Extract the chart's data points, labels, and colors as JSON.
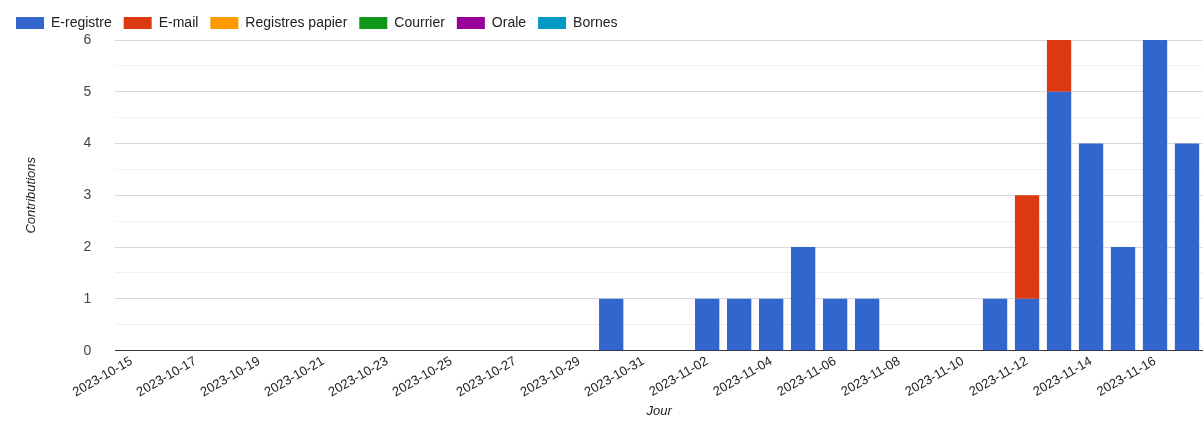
{
  "chart_data": {
    "type": "bar",
    "stacked": true,
    "xlabel": "Jour",
    "ylabel": "Contributions",
    "legend": "top left",
    "grid": "y",
    "categories": [
      "2023-10-15",
      null,
      "2023-10-17",
      null,
      "2023-10-19",
      null,
      "2023-10-21",
      null,
      "2023-10-23",
      null,
      "2023-10-25",
      null,
      "2023-10-27",
      null,
      "2023-10-29",
      null,
      "2023-10-31",
      null,
      "2023-11-02",
      null,
      "2023-11-04",
      null,
      "2023-11-06",
      null,
      "2023-11-08",
      null,
      "2023-11-10",
      null,
      "2023-11-12",
      null,
      "2023-11-14",
      null,
      "2023-11-16",
      null
    ],
    "ylim": [
      0,
      6
    ],
    "yticks": [
      0,
      {
        "value": 0.5,
        "label": null
      },
      1,
      {
        "value": 1.5,
        "label": null
      },
      2,
      {
        "value": 2.5,
        "label": null
      },
      3,
      {
        "value": 3.5,
        "label": null
      },
      4,
      {
        "value": 4.5,
        "label": null
      },
      5,
      {
        "value": 5.5,
        "label": null
      },
      6
    ],
    "series": [
      {
        "name": "E-registre",
        "color": "#3366cc",
        "values": [
          0,
          0,
          0,
          0,
          0,
          0,
          0,
          0,
          0,
          0,
          0,
          0,
          0,
          0,
          0,
          1,
          0,
          0,
          1,
          1,
          1,
          2,
          1,
          1,
          0,
          0,
          0,
          1,
          1,
          5,
          4,
          2,
          6,
          4
        ]
      },
      {
        "name": "E-mail",
        "color": "#dc3912",
        "values": [
          0,
          0,
          0,
          0,
          0,
          0,
          0,
          0,
          0,
          0,
          0,
          0,
          0,
          0,
          0,
          0,
          0,
          0,
          0,
          0,
          0,
          0,
          0,
          0,
          0,
          0,
          0,
          0,
          2,
          1,
          0,
          0,
          0,
          0
        ]
      },
      {
        "name": "Registres papier",
        "color": "#ff9900",
        "values": [
          0,
          0,
          0,
          0,
          0,
          0,
          0,
          0,
          0,
          0,
          0,
          0,
          0,
          0,
          0,
          0,
          0,
          0,
          0,
          0,
          0,
          0,
          0,
          0,
          0,
          0,
          0,
          0,
          0,
          0,
          0,
          0,
          0,
          0
        ]
      },
      {
        "name": "Courrier",
        "color": "#109618",
        "values": [
          0,
          0,
          0,
          0,
          0,
          0,
          0,
          0,
          0,
          0,
          0,
          0,
          0,
          0,
          0,
          0,
          0,
          0,
          0,
          0,
          0,
          0,
          0,
          0,
          0,
          0,
          0,
          0,
          0,
          0,
          0,
          0,
          0,
          0
        ]
      },
      {
        "name": "Orale",
        "color": "#990099",
        "values": [
          0,
          0,
          0,
          0,
          0,
          0,
          0,
          0,
          0,
          0,
          0,
          0,
          0,
          0,
          0,
          0,
          0,
          0,
          0,
          0,
          0,
          0,
          0,
          0,
          0,
          0,
          0,
          0,
          0,
          0,
          0,
          0,
          0,
          0
        ]
      },
      {
        "name": "Bornes",
        "color": "#0099c6",
        "values": [
          0,
          0,
          0,
          0,
          0,
          0,
          0,
          0,
          0,
          0,
          0,
          0,
          0,
          0,
          0,
          0,
          0,
          0,
          0,
          0,
          0,
          0,
          0,
          0,
          0,
          0,
          0,
          0,
          0,
          0,
          0,
          0,
          0,
          0
        ]
      }
    ]
  }
}
